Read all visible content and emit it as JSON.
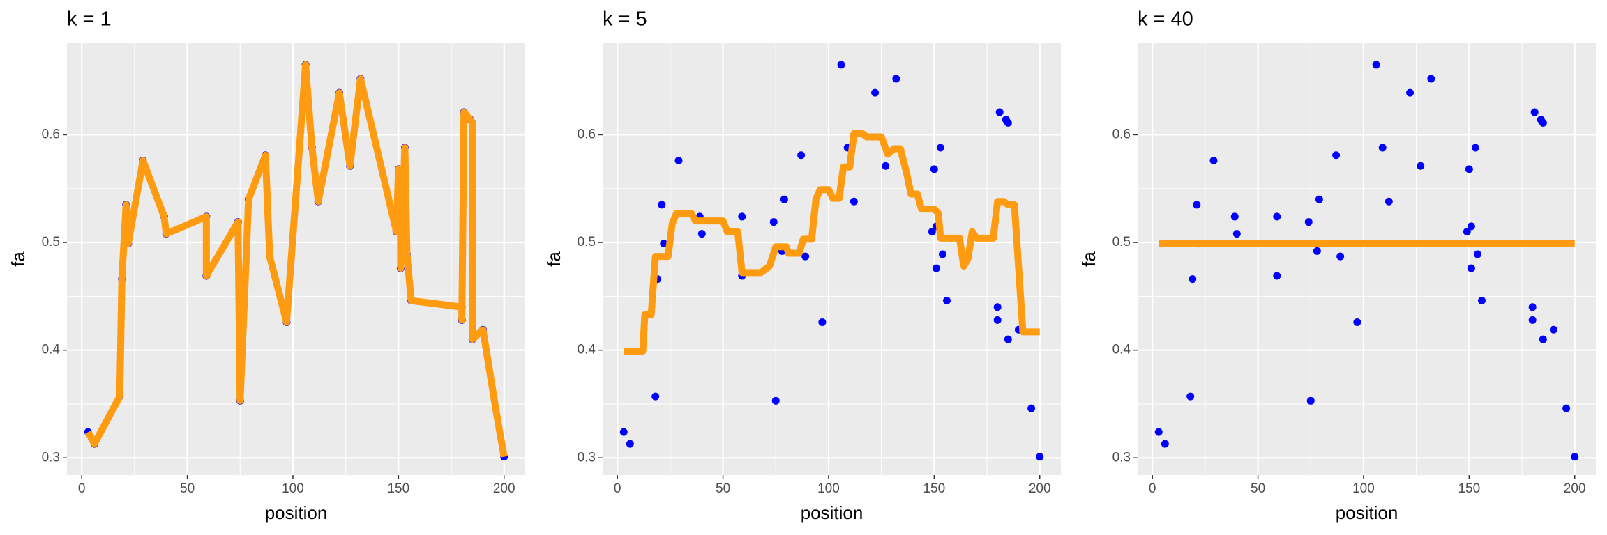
{
  "chart_data": [
    {
      "type": "scatter",
      "title": "k = 1",
      "x_label": "position",
      "y_label": "fa",
      "xlim": [
        -7,
        210
      ],
      "xticks": [
        0,
        50,
        100,
        150,
        200
      ],
      "ylim": [
        0.284,
        0.685
      ],
      "yticks": [
        0.3,
        0.4,
        0.5,
        0.6
      ],
      "grid": true,
      "series": [
        {
          "type": "scatter",
          "color": "#0000ff",
          "x": [
            3,
            6,
            18,
            19,
            21,
            22,
            29,
            39,
            40,
            59,
            59,
            74,
            75,
            78,
            79,
            87,
            89,
            97,
            106,
            109,
            112,
            122,
            127,
            132,
            149,
            150,
            151,
            151,
            153,
            154,
            156,
            180,
            180,
            181,
            184,
            185,
            185,
            190,
            196,
            200
          ],
          "values": [
            0.324,
            0.313,
            0.357,
            0.466,
            0.535,
            0.499,
            0.576,
            0.524,
            0.508,
            0.524,
            0.469,
            0.519,
            0.353,
            0.492,
            0.54,
            0.581,
            0.487,
            0.426,
            0.665,
            0.588,
            0.538,
            0.639,
            0.571,
            0.652,
            0.51,
            0.568,
            0.515,
            0.476,
            0.588,
            0.489,
            0.446,
            0.44,
            0.428,
            0.621,
            0.614,
            0.611,
            0.41,
            0.419,
            0.346,
            0.301
          ]
        },
        {
          "type": "line",
          "color": "#ff9b10",
          "x": [
            3,
            6,
            18,
            19,
            21,
            22,
            29,
            39,
            40,
            59,
            59,
            74,
            75,
            78,
            79,
            87,
            89,
            97,
            106,
            109,
            112,
            122,
            127,
            132,
            149,
            150,
            151,
            151,
            153,
            154,
            156,
            180,
            180,
            181,
            184,
            185,
            185,
            190,
            196,
            200
          ],
          "values": [
            0.324,
            0.313,
            0.357,
            0.466,
            0.535,
            0.499,
            0.576,
            0.524,
            0.508,
            0.524,
            0.469,
            0.519,
            0.353,
            0.492,
            0.54,
            0.581,
            0.487,
            0.426,
            0.665,
            0.588,
            0.538,
            0.639,
            0.571,
            0.652,
            0.51,
            0.568,
            0.515,
            0.476,
            0.588,
            0.489,
            0.446,
            0.44,
            0.428,
            0.621,
            0.614,
            0.611,
            0.41,
            0.419,
            0.346,
            0.301
          ]
        }
      ]
    },
    {
      "type": "scatter",
      "title": "k = 5",
      "x_label": "position",
      "y_label": "fa",
      "xlim": [
        -7,
        210
      ],
      "xticks": [
        0,
        50,
        100,
        150,
        200
      ],
      "ylim": [
        0.284,
        0.685
      ],
      "yticks": [
        0.3,
        0.4,
        0.5,
        0.6
      ],
      "grid": true,
      "series": [
        {
          "type": "scatter",
          "color": "#0000ff",
          "x": [
            3,
            6,
            18,
            19,
            21,
            22,
            29,
            39,
            40,
            59,
            59,
            74,
            75,
            78,
            79,
            87,
            89,
            97,
            106,
            109,
            112,
            122,
            127,
            132,
            149,
            150,
            151,
            151,
            153,
            154,
            156,
            180,
            180,
            181,
            184,
            185,
            185,
            190,
            196,
            200
          ],
          "values": [
            0.324,
            0.313,
            0.357,
            0.466,
            0.535,
            0.499,
            0.576,
            0.524,
            0.508,
            0.524,
            0.469,
            0.519,
            0.353,
            0.492,
            0.54,
            0.581,
            0.487,
            0.426,
            0.665,
            0.588,
            0.538,
            0.639,
            0.571,
            0.652,
            0.51,
            0.568,
            0.515,
            0.476,
            0.588,
            0.489,
            0.446,
            0.44,
            0.428,
            0.621,
            0.614,
            0.611,
            0.41,
            0.419,
            0.346,
            0.301
          ]
        },
        {
          "type": "line",
          "color": "#ff9b10",
          "x": [
            3,
            12,
            13,
            16,
            18,
            24,
            26,
            28,
            35,
            37,
            50,
            52,
            57,
            59,
            68,
            72,
            75,
            80,
            81,
            86,
            88,
            92,
            94,
            96,
            100,
            102,
            105,
            107,
            110,
            112,
            116,
            118,
            125,
            128,
            131,
            134,
            137,
            139,
            142,
            144,
            150,
            152,
            153,
            162,
            164,
            166,
            168,
            170,
            178,
            180,
            183,
            185,
            188,
            192,
            200
          ],
          "values": [
            0.399,
            0.399,
            0.433,
            0.433,
            0.487,
            0.487,
            0.518,
            0.527,
            0.527,
            0.52,
            0.52,
            0.51,
            0.51,
            0.472,
            0.472,
            0.478,
            0.496,
            0.496,
            0.49,
            0.49,
            0.503,
            0.503,
            0.54,
            0.549,
            0.549,
            0.541,
            0.541,
            0.57,
            0.57,
            0.601,
            0.601,
            0.598,
            0.598,
            0.582,
            0.587,
            0.587,
            0.564,
            0.545,
            0.545,
            0.531,
            0.531,
            0.527,
            0.504,
            0.504,
            0.478,
            0.485,
            0.51,
            0.504,
            0.504,
            0.538,
            0.538,
            0.535,
            0.535,
            0.417,
            0.417
          ]
        }
      ]
    },
    {
      "type": "scatter",
      "title": "k = 40",
      "x_label": "position",
      "y_label": "fa",
      "xlim": [
        -7,
        210
      ],
      "xticks": [
        0,
        50,
        100,
        150,
        200
      ],
      "ylim": [
        0.284,
        0.685
      ],
      "yticks": [
        0.3,
        0.4,
        0.5,
        0.6
      ],
      "grid": true,
      "series": [
        {
          "type": "scatter",
          "color": "#0000ff",
          "x": [
            3,
            6,
            18,
            19,
            21,
            22,
            29,
            39,
            40,
            59,
            59,
            74,
            75,
            78,
            79,
            87,
            89,
            97,
            106,
            109,
            112,
            122,
            127,
            132,
            149,
            150,
            151,
            151,
            153,
            154,
            156,
            180,
            180,
            181,
            184,
            185,
            185,
            190,
            196,
            200
          ],
          "values": [
            0.324,
            0.313,
            0.357,
            0.466,
            0.535,
            0.499,
            0.576,
            0.524,
            0.508,
            0.524,
            0.469,
            0.519,
            0.353,
            0.492,
            0.54,
            0.581,
            0.487,
            0.426,
            0.665,
            0.588,
            0.538,
            0.639,
            0.571,
            0.652,
            0.51,
            0.568,
            0.515,
            0.476,
            0.588,
            0.489,
            0.446,
            0.44,
            0.428,
            0.621,
            0.614,
            0.611,
            0.41,
            0.419,
            0.346,
            0.301
          ]
        },
        {
          "type": "line",
          "color": "#ff9b10",
          "x": [
            3,
            200
          ],
          "values": [
            0.499,
            0.499
          ]
        }
      ]
    }
  ]
}
